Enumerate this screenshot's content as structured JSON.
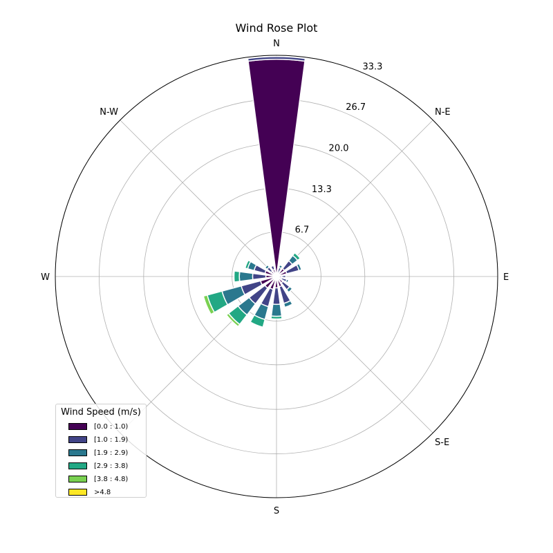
{
  "chart_data": {
    "type": "windrose",
    "title": "Wind Rose Plot",
    "directions": [
      "N",
      "N-E",
      "E",
      "S-E",
      "S",
      "W",
      "N-W"
    ],
    "rings": [
      6.7,
      13.3,
      20.0,
      26.7,
      33.3
    ],
    "ring_labels": [
      "6.7",
      "13.3",
      "20.0",
      "26.7",
      "33.3"
    ],
    "rmax": 33.3,
    "legend": {
      "title": "Wind Speed (m/s)",
      "placement": "lower-left",
      "bins": [
        "[0.0 : 1.0)",
        "[1.0 : 1.9)",
        "[1.9 : 2.9)",
        "[2.9 : 3.8)",
        "[3.8 : 4.8)",
        ">4.8"
      ],
      "colors": [
        "#440154",
        "#414487",
        "#2a788e",
        "#22a884",
        "#7ad151",
        "#fde725"
      ]
    },
    "sector_width_deg": 15,
    "sectors": [
      {
        "angle": 0,
        "values": [
          32.7,
          0.4,
          0,
          0,
          0,
          0
        ]
      },
      {
        "angle": 22.5,
        "values": [
          0.6,
          0.8,
          0.4,
          0,
          0,
          0
        ]
      },
      {
        "angle": 45,
        "values": [
          1.5,
          1.5,
          1.0,
          0.5,
          0,
          0
        ]
      },
      {
        "angle": 67.5,
        "values": [
          1.6,
          1.9,
          0.4,
          0,
          0,
          0
        ]
      },
      {
        "angle": 90,
        "values": [
          0.8,
          0.6,
          0,
          0,
          0,
          0
        ]
      },
      {
        "angle": 112.5,
        "values": [
          0.8,
          0.8,
          0.3,
          0,
          0,
          0
        ]
      },
      {
        "angle": 135,
        "values": [
          1.2,
          1.3,
          0.5,
          0,
          0,
          0
        ]
      },
      {
        "angle": 157.5,
        "values": [
          1.6,
          2.6,
          0.6,
          0,
          0,
          0
        ]
      },
      {
        "angle": 180,
        "values": [
          1.7,
          2.5,
          1.8,
          0.4,
          0,
          0
        ]
      },
      {
        "angle": 202.5,
        "values": [
          2.0,
          2.7,
          2.0,
          1.2,
          0,
          0
        ]
      },
      {
        "angle": 225,
        "values": [
          2.2,
          3.0,
          2.1,
          1.8,
          0.4,
          0
        ]
      },
      {
        "angle": 247.5,
        "values": [
          2.5,
          3.0,
          3.0,
          2.3,
          0.6,
          0
        ]
      },
      {
        "angle": 270,
        "values": [
          1.6,
          2.0,
          2.0,
          0.8,
          0,
          0
        ]
      },
      {
        "angle": 292.5,
        "values": [
          1.8,
          1.7,
          1.0,
          0.4,
          0,
          0
        ]
      },
      {
        "angle": 315,
        "values": [
          1.0,
          0.8,
          0.4,
          0,
          0,
          0
        ]
      },
      {
        "angle": 337.5,
        "values": [
          1.1,
          0.6,
          0,
          0,
          0,
          0
        ]
      }
    ]
  }
}
